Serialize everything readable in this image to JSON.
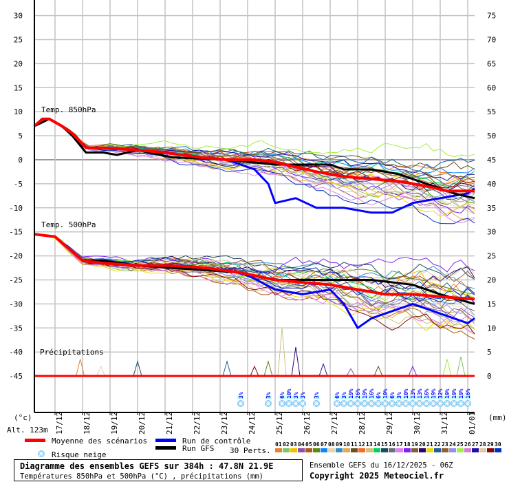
{
  "chart_data": {
    "type": "line",
    "title": "Diagramme des ensembles GEFS sur 384h : 47.8N 21.9E",
    "subtitle": "Températures 850hPa et 500hPa (°C) , précipitations (mm)",
    "run_info": "Ensemble GEFS du 16/12/2025 - 06Z",
    "copyright": "Copyright 2025 Meteociel.fr",
    "left_unit": "(°c)",
    "right_unit": "(mm)",
    "altitude": "Alt. 123m",
    "ylim_temp": [
      -50,
      33
    ],
    "yticks_temp": [
      30,
      25,
      20,
      15,
      10,
      5,
      0,
      -5,
      -10,
      -15,
      -20,
      -25,
      -30,
      -35,
      -40,
      -45
    ],
    "yticks_precip": [
      75,
      70,
      65,
      60,
      55,
      50,
      45,
      40,
      35,
      30,
      25,
      20,
      15,
      10,
      5,
      0
    ],
    "x_hours_range": [
      0,
      384
    ],
    "x_labels": [
      "17/12",
      "18/12",
      "19/12",
      "20/12",
      "21/12",
      "22/12",
      "23/12",
      "24/12",
      "25/12",
      "26/12",
      "27/12",
      "28/12",
      "29/12",
      "30/12",
      "31/12",
      "01/01"
    ],
    "panel_labels": {
      "t850": "Temp. 850hPa",
      "t500": "Temp. 500hPa",
      "precip": "Précipitations"
    },
    "grid": true,
    "series": [
      {
        "name": "Moyenne des scénarios",
        "color": "#ff0000",
        "level": "850",
        "hours": [
          0,
          7,
          13,
          24,
          33,
          45,
          60,
          90,
          114,
          144,
          168,
          192,
          210,
          228,
          246,
          270,
          294,
          318,
          342,
          360,
          384
        ],
        "values": [
          7,
          8.5,
          8.5,
          7,
          5.5,
          2.5,
          2.5,
          2,
          1.5,
          0.5,
          0,
          0,
          -0.5,
          -1.5,
          -2.5,
          -3.5,
          -4,
          -4.5,
          -5.5,
          -6.5,
          -6.5
        ]
      },
      {
        "name": "Run de contrôle",
        "color": "#0000ff",
        "level": "850",
        "hours": [
          0,
          13,
          24,
          33,
          45,
          60,
          90,
          114,
          144,
          168,
          192,
          204,
          210,
          228,
          246,
          270,
          294,
          312,
          330,
          354,
          378,
          384
        ],
        "values": [
          7,
          8.5,
          7,
          5.5,
          2.5,
          2.5,
          2,
          1.5,
          0.5,
          0,
          -2,
          -5,
          -9,
          -8,
          -10,
          -10,
          -11,
          -11,
          -9,
          -8,
          -7,
          -6
        ]
      },
      {
        "name": "Run GFS",
        "color": "#000000",
        "level": "850",
        "hours": [
          0,
          13,
          24,
          33,
          45,
          60,
          72,
          90,
          120,
          168,
          210,
          234,
          258,
          270,
          294,
          318,
          342,
          366,
          384
        ],
        "values": [
          7,
          8.5,
          7,
          5,
          1.5,
          1.5,
          1,
          2,
          0.5,
          0,
          -1,
          -1,
          -1,
          -2,
          -2,
          -3,
          -5,
          -7,
          -8
        ]
      },
      {
        "name": "Moyenne des scénarios",
        "color": "#ff0000",
        "level": "500",
        "hours": [
          0,
          18,
          42,
          60,
          90,
          120,
          150,
          180,
          210,
          234,
          258,
          282,
          306,
          330,
          354,
          384
        ],
        "values": [
          -15.5,
          -16,
          -21,
          -21.5,
          -22,
          -22,
          -22.5,
          -23.5,
          -25,
          -25.5,
          -26,
          -27,
          -28,
          -28,
          -28.5,
          -29
        ]
      },
      {
        "name": "Run de contrôle",
        "color": "#0000ff",
        "level": "500",
        "hours": [
          0,
          18,
          42,
          60,
          90,
          120,
          150,
          168,
          186,
          210,
          234,
          258,
          270,
          282,
          294,
          330,
          354,
          378,
          384
        ],
        "values": [
          -15.5,
          -16,
          -21,
          -21.5,
          -22,
          -22,
          -22.5,
          -23,
          -24,
          -27,
          -28,
          -27,
          -30,
          -35,
          -33,
          -30,
          -32,
          -34,
          -33
        ]
      },
      {
        "name": "Run GFS",
        "color": "#000000",
        "level": "500",
        "hours": [
          0,
          18,
          42,
          60,
          90,
          120,
          150,
          180,
          210,
          258,
          294,
          330,
          354,
          384
        ],
        "values": [
          -15.5,
          -16,
          -21,
          -21,
          -22,
          -22.5,
          -23,
          -23.5,
          -25,
          -25,
          -25,
          -26,
          -28,
          -30
        ]
      }
    ],
    "perturbations": {
      "label": "30 Perts.",
      "ids": [
        "01",
        "02",
        "03",
        "04",
        "05",
        "06",
        "07",
        "08",
        "09",
        "10",
        "11",
        "12",
        "13",
        "14",
        "15",
        "16",
        "17",
        "18",
        "19",
        "20",
        "21",
        "22",
        "23",
        "24",
        "25",
        "26",
        "27",
        "28",
        "29",
        "30"
      ],
      "colors": [
        "#e8812b",
        "#80c46a",
        "#f0c300",
        "#8f4fb0",
        "#b05a10",
        "#5a8a10",
        "#0a84ff",
        "#e6d5b0",
        "#3a8fc0",
        "#e8a850",
        "#6a5020",
        "#f56a20",
        "#d0c080",
        "#00d060",
        "#204860",
        "#687078",
        "#e080f0",
        "#8020f0",
        "#806030",
        "#300070",
        "#f0d800",
        "#2060a0",
        "#906030",
        "#9090f0",
        "#a0f040",
        "#d878d8",
        "#2010a0",
        "#e0c8a0",
        "#880808",
        "#0030c0"
      ],
      "end_offset_850": [
        3,
        -2,
        1,
        -4,
        2,
        -1,
        4,
        -3,
        0,
        -5,
        5,
        1,
        -2,
        3,
        -1,
        2,
        -6,
        -3,
        1,
        0,
        -4,
        6,
        2,
        -2,
        9,
        -1,
        3,
        -3,
        1,
        -7
      ],
      "end_offset_500": [
        2,
        -4,
        3,
        -2,
        -6,
        4,
        1,
        -1,
        5,
        -3,
        0,
        3,
        -5,
        2,
        6,
        -2,
        -4,
        8,
        -1,
        3,
        -6,
        2,
        4,
        -3,
        1,
        -5,
        0,
        5,
        -7,
        2
      ]
    },
    "precip_events": [
      {
        "hour": 40,
        "mm": 3.5
      },
      {
        "hour": 58,
        "mm": 2
      },
      {
        "hour": 90,
        "mm": 3
      },
      {
        "hour": 168,
        "mm": 3
      },
      {
        "hour": 192,
        "mm": 2
      },
      {
        "hour": 204,
        "mm": 3
      },
      {
        "hour": 216,
        "mm": 10
      },
      {
        "hour": 228,
        "mm": 6
      },
      {
        "hour": 252,
        "mm": 2.5
      },
      {
        "hour": 276,
        "mm": 1.5
      },
      {
        "hour": 300,
        "mm": 2
      },
      {
        "hour": 330,
        "mm": 2
      },
      {
        "hour": 360,
        "mm": 3.5
      },
      {
        "hour": 372,
        "mm": 4
      }
    ],
    "snow_risk": {
      "label": "Risque neige",
      "hours": [
        180,
        204,
        216,
        222,
        228,
        234,
        246,
        264,
        270,
        276,
        282,
        288,
        294,
        300,
        306,
        312,
        318,
        324,
        330,
        336,
        342,
        348,
        354,
        360,
        366,
        372,
        378
      ],
      "pct": [
        "3%",
        "3%",
        "6%",
        "10%",
        "3%",
        "3%",
        "3%",
        "6%",
        "3%",
        "19%",
        "26%",
        "19%",
        "16%",
        "6%",
        "10%",
        "6%",
        "3%",
        "10%",
        "13%",
        "13%",
        "16%",
        "19%",
        "32%",
        "19%",
        "19%",
        "19%",
        "16%"
      ]
    }
  }
}
